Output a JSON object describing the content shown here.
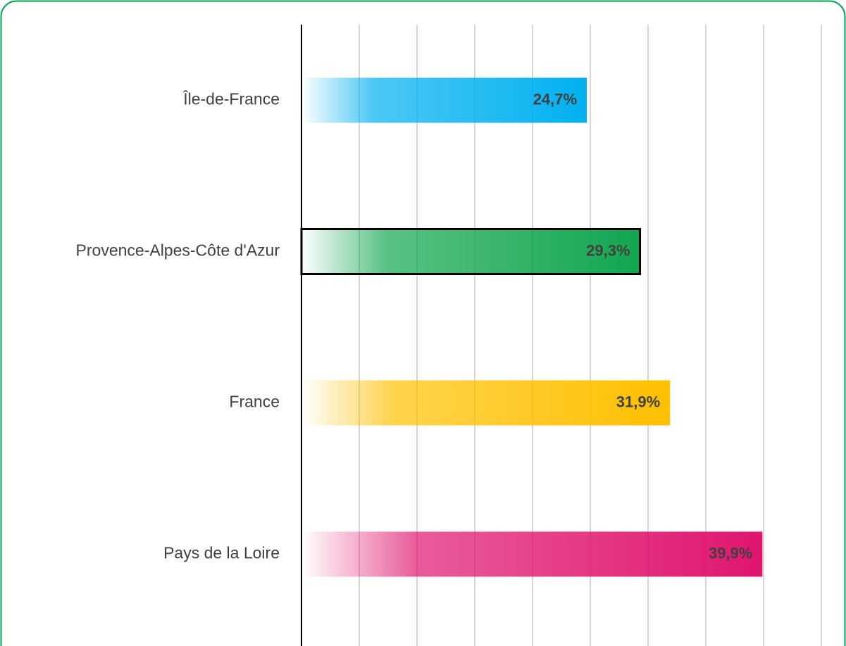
{
  "chart_data": {
    "type": "barh",
    "categories": [
      "Île-de-France",
      "Provence-Alpes-Côte d'Azur",
      "France",
      "Pays de la Loire"
    ],
    "values": [
      24.7,
      29.3,
      31.9,
      39.9
    ],
    "value_labels": [
      "24,7%",
      "29,3%",
      "31,9%",
      "39,9%"
    ],
    "colors": [
      "#00b0f0",
      "#12a650",
      "#ffc000",
      "#e0156f"
    ],
    "outlined": [
      false,
      true,
      false,
      false
    ],
    "xlim": [
      0,
      45
    ],
    "xticks": [
      0,
      5,
      10,
      15,
      20,
      25,
      30,
      35,
      40,
      45
    ],
    "grid": true
  }
}
